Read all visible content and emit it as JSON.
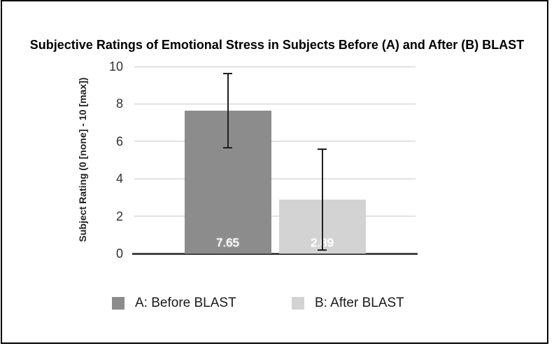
{
  "chart_data": {
    "type": "bar",
    "title": "Subjective Ratings of Emotional Stress in Subjects Before (A) and After (B) BLAST",
    "xlabel": "",
    "ylabel": "Subject Rating (0 [none] - 10 [max])",
    "ylim": [
      0,
      10
    ],
    "yticks": [
      0,
      2,
      4,
      6,
      8,
      10
    ],
    "grid": true,
    "legend_position": "bottom",
    "categories": [
      ""
    ],
    "series": [
      {
        "name": "A: Before BLAST",
        "value": 7.65,
        "value_label": "7.65",
        "error_low": 5.6,
        "error_high": 9.65,
        "color": "#8c8c8c"
      },
      {
        "name": "B: After BLAST",
        "value": 2.89,
        "value_label": "2.89",
        "error_low": 0.15,
        "error_high": 5.6,
        "color": "#d3d3d3"
      }
    ],
    "colors": {
      "grid": "#c9c9c9",
      "axis_line": "#444444",
      "error_bar": "#1f1f1f",
      "title_text": "#000000",
      "tick_text": "#333333",
      "value_label_text": "#ffffff",
      "legend_text": "#1a1a1a",
      "frame_border": "#000000"
    }
  }
}
